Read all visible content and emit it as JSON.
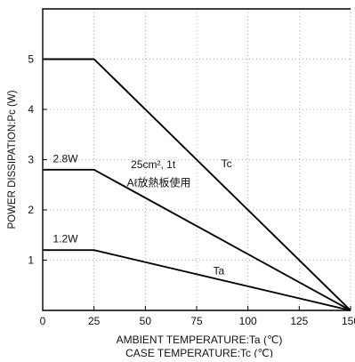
{
  "chart_data": {
    "type": "line",
    "ylabel": "POWER DISSIPATION:Pc (W)",
    "xlabel_lines": [
      "AMBIENT TEMPERATURE:Ta (℃)",
      "CASE TEMPERATURE:Tc (℃)"
    ],
    "xlim": [
      0,
      150
    ],
    "ylim": [
      0,
      6
    ],
    "x_ticks": [
      0,
      25,
      50,
      75,
      100,
      125,
      150
    ],
    "y_ticks": [
      1,
      2,
      3,
      4,
      5
    ],
    "grid": true,
    "series": [
      {
        "name": "Tc",
        "points": [
          [
            0,
            5
          ],
          [
            25,
            5
          ],
          [
            150,
            0
          ]
        ]
      },
      {
        "points": [
          [
            0,
            2.8
          ],
          [
            25,
            2.8
          ],
          [
            150,
            0
          ]
        ]
      },
      {
        "name": "Ta",
        "points": [
          [
            0,
            1.2
          ],
          [
            25,
            1.2
          ],
          [
            150,
            0
          ]
        ]
      }
    ],
    "annotations": [
      {
        "text": "2.8W",
        "x": 5,
        "y": 2.95
      },
      {
        "text": "1.2W",
        "x": 5,
        "y": 1.35
      },
      {
        "text": "25cm², 1t",
        "x": 43,
        "y": 2.83
      },
      {
        "text": "Aℓ放熱板使用",
        "x": 41,
        "y": 2.47
      },
      {
        "text": "Tc",
        "x": 87,
        "y": 2.85
      },
      {
        "text": "Ta",
        "x": 83,
        "y": 0.72
      }
    ]
  }
}
